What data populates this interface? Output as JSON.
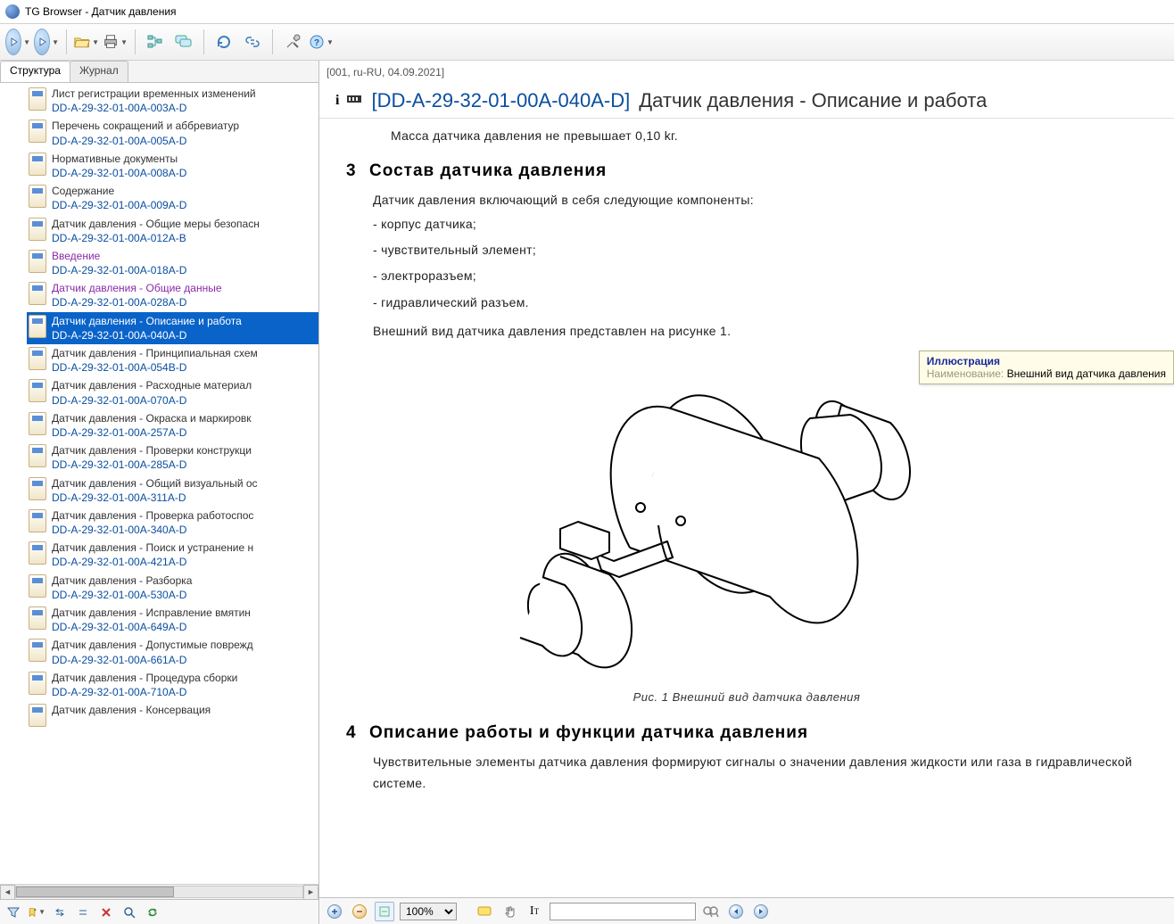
{
  "window": {
    "title": "TG Browser - Датчик давления"
  },
  "tabs": {
    "structure": "Структура",
    "journal": "Журнал"
  },
  "tree_items": [
    {
      "title": "Лист регистрации временных изменений",
      "code": "DD-A-29-32-01-00A-003A-D",
      "visited": false
    },
    {
      "title": "Перечень сокращений и аббревиатур",
      "code": "DD-A-29-32-01-00A-005A-D",
      "visited": false
    },
    {
      "title": "Нормативные документы",
      "code": "DD-A-29-32-01-00A-008A-D",
      "visited": false
    },
    {
      "title": "Содержание",
      "code": "DD-A-29-32-01-00A-009A-D",
      "visited": false
    },
    {
      "title": "Датчик давления - Общие меры безопасн",
      "code": "DD-A-29-32-01-00A-012A-B",
      "visited": false
    },
    {
      "title": "Введение",
      "code": "DD-A-29-32-01-00A-018A-D",
      "visited": true
    },
    {
      "title": "Датчик давления - Общие данные",
      "code": "DD-A-29-32-01-00A-028A-D",
      "visited": true
    },
    {
      "title": "Датчик давления - Описание и работа",
      "code": "DD-A-29-32-01-00A-040A-D",
      "visited": false,
      "selected": true
    },
    {
      "title": "Датчик давления - Принципиальная схем",
      "code": "DD-A-29-32-01-00A-054B-D",
      "visited": false
    },
    {
      "title": "Датчик давления  - Расходные материал",
      "code": "DD-A-29-32-01-00A-070A-D",
      "visited": false
    },
    {
      "title": "Датчик давления - Окраска и маркировк",
      "code": "DD-A-29-32-01-00A-257A-D",
      "visited": false
    },
    {
      "title": "Датчик давления - Проверки конструкци",
      "code": "DD-A-29-32-01-00A-285A-D",
      "visited": false
    },
    {
      "title": "Датчик давления - Общий визуальный ос",
      "code": "DD-A-29-32-01-00A-311A-D",
      "visited": false
    },
    {
      "title": "Датчик давления - Проверка работоспос",
      "code": "DD-A-29-32-01-00A-340A-D",
      "visited": false
    },
    {
      "title": "Датчик давления - Поиск и устранение н",
      "code": "DD-A-29-32-01-00A-421A-D",
      "visited": false
    },
    {
      "title": "Датчик давления - Разборка",
      "code": "DD-A-29-32-01-00A-530A-D",
      "visited": false
    },
    {
      "title": "Датчик давления - Исправление вмятин",
      "code": "DD-A-29-32-01-00A-649A-D",
      "visited": false
    },
    {
      "title": "Датчик давления - Допустимые поврежд",
      "code": "DD-A-29-32-01-00A-661A-D",
      "visited": false
    },
    {
      "title": "Датчик давления - Процедура сборки",
      "code": "DD-A-29-32-01-00A-710A-D",
      "visited": false
    },
    {
      "title": "Датчик давления - Консервация",
      "code": "",
      "visited": false
    }
  ],
  "breadcrumb": "[001, ru-RU, 04.09.2021]",
  "doc": {
    "code": "[DD-A-29-32-01-00A-040A-D]",
    "title": "Датчик давления - Описание и работа",
    "cutoff": "Масса датчика давления не превышает 0,10 kг.",
    "sec3_num": "3",
    "sec3_title": "Состав датчика давления",
    "sec3_intro": "Датчик давления включающий в себя следующие компоненты:",
    "sec3_items": [
      "- корпус датчика;",
      "- чувствительный элемент;",
      "- электроразъем;",
      "- гидравлический разъем."
    ],
    "sec3_after": "Внешний вид датчика давления представлен на рисунке 1.",
    "fig_caption": "Рис. 1   Внешний вид датчика давления",
    "sec4_num": "4",
    "sec4_title": "Описание работы и функции датчика давления",
    "sec4_para": "Чувствительные элементы датчика давления формируют сигналы о значении давления жидкости или газа в гидравлической системе."
  },
  "tooltip": {
    "title": "Иллюстрация",
    "label": "Наименование:",
    "value": "Внешний вид датчика давления"
  },
  "zoom": "100%"
}
